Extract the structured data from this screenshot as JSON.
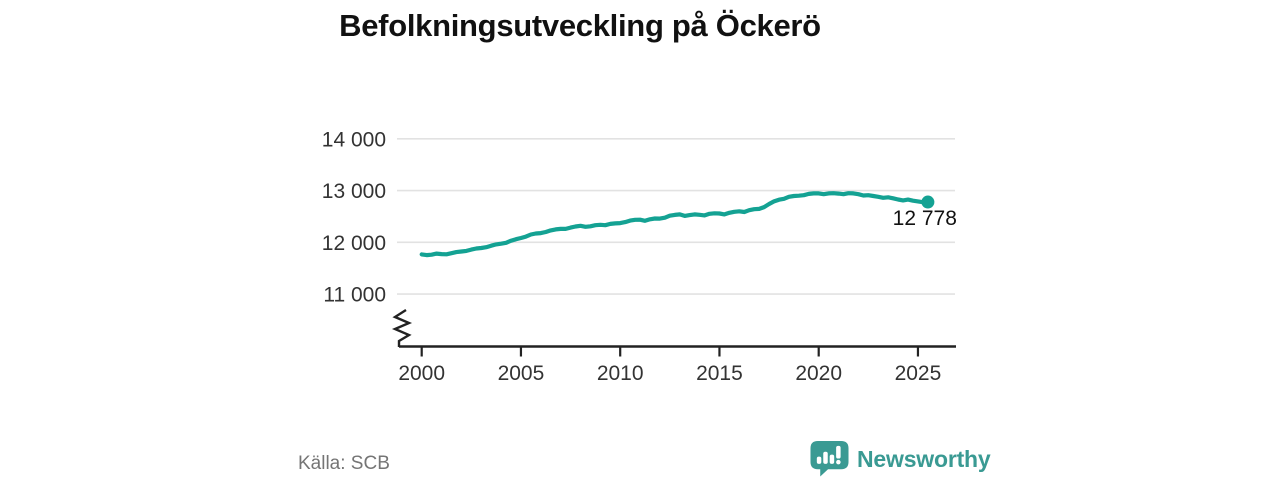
{
  "chart": {
    "title": "Befolkningsutveckling på Öckerö"
  },
  "footer": {
    "source": "Källa: SCB",
    "logo_text": "Newsworthy"
  },
  "colors": {
    "line": "#14a293",
    "grid": "#e2e2e2",
    "axis": "#222222",
    "tick_text": "#333333",
    "end_label_text": "#111111",
    "title_text": "#111111",
    "source_text": "#757575",
    "logo": "#3a9a93"
  },
  "chart_data": {
    "type": "line",
    "title": "Befolkningsutveckling på Öckerö",
    "xlabel": "",
    "ylabel": "",
    "source": "Källa: SCB",
    "grid": "horizontal",
    "axis_break_bottom": true,
    "xlim": [
      1998.8,
      2026.9
    ],
    "ylim_shown": [
      11000,
      14000
    ],
    "y_ticks": [
      {
        "value": 14000,
        "label": "14 000"
      },
      {
        "value": 13000,
        "label": "13 000"
      },
      {
        "value": 12000,
        "label": "12 000"
      },
      {
        "value": 11000,
        "label": "11 000"
      }
    ],
    "x_ticks": [
      {
        "value": 2000,
        "label": "2000"
      },
      {
        "value": 2005,
        "label": "2005"
      },
      {
        "value": 2010,
        "label": "2010"
      },
      {
        "value": 2015,
        "label": "2015"
      },
      {
        "value": 2020,
        "label": "2020"
      },
      {
        "value": 2025,
        "label": "2025"
      }
    ],
    "end_label": "12 778",
    "series": [
      {
        "name": "Befolkning",
        "points": [
          [
            2000.0,
            11767
          ],
          [
            2000.25,
            11752
          ],
          [
            2000.5,
            11760
          ],
          [
            2000.75,
            11782
          ],
          [
            2001.0,
            11771
          ],
          [
            2001.25,
            11768
          ],
          [
            2001.5,
            11790
          ],
          [
            2001.75,
            11810
          ],
          [
            2002.0,
            11822
          ],
          [
            2002.25,
            11833
          ],
          [
            2002.5,
            11858
          ],
          [
            2002.75,
            11880
          ],
          [
            2003.0,
            11890
          ],
          [
            2003.25,
            11905
          ],
          [
            2003.5,
            11935
          ],
          [
            2003.75,
            11960
          ],
          [
            2004.0,
            11972
          ],
          [
            2004.25,
            11990
          ],
          [
            2004.5,
            12030
          ],
          [
            2004.75,
            12060
          ],
          [
            2005.0,
            12084
          ],
          [
            2005.25,
            12110
          ],
          [
            2005.5,
            12150
          ],
          [
            2005.75,
            12170
          ],
          [
            2006.0,
            12178
          ],
          [
            2006.25,
            12200
          ],
          [
            2006.5,
            12230
          ],
          [
            2006.75,
            12250
          ],
          [
            2007.0,
            12259
          ],
          [
            2007.25,
            12260
          ],
          [
            2007.5,
            12285
          ],
          [
            2007.75,
            12305
          ],
          [
            2008.0,
            12319
          ],
          [
            2008.25,
            12300
          ],
          [
            2008.5,
            12310
          ],
          [
            2008.75,
            12330
          ],
          [
            2009.0,
            12339
          ],
          [
            2009.25,
            12330
          ],
          [
            2009.5,
            12355
          ],
          [
            2009.75,
            12365
          ],
          [
            2010.0,
            12372
          ],
          [
            2010.25,
            12390
          ],
          [
            2010.5,
            12420
          ],
          [
            2010.75,
            12435
          ],
          [
            2011.0,
            12437
          ],
          [
            2011.25,
            12415
          ],
          [
            2011.5,
            12445
          ],
          [
            2011.75,
            12460
          ],
          [
            2012.0,
            12459
          ],
          [
            2012.25,
            12475
          ],
          [
            2012.5,
            12515
          ],
          [
            2012.75,
            12530
          ],
          [
            2013.0,
            12539
          ],
          [
            2013.25,
            12510
          ],
          [
            2013.5,
            12525
          ],
          [
            2013.75,
            12540
          ],
          [
            2014.0,
            12532
          ],
          [
            2014.25,
            12520
          ],
          [
            2014.5,
            12550
          ],
          [
            2014.75,
            12560
          ],
          [
            2015.0,
            12557
          ],
          [
            2015.25,
            12540
          ],
          [
            2015.5,
            12570
          ],
          [
            2015.75,
            12590
          ],
          [
            2016.0,
            12599
          ],
          [
            2016.25,
            12585
          ],
          [
            2016.5,
            12620
          ],
          [
            2016.75,
            12640
          ],
          [
            2017.0,
            12645
          ],
          [
            2017.25,
            12680
          ],
          [
            2017.5,
            12740
          ],
          [
            2017.75,
            12790
          ],
          [
            2018.0,
            12823
          ],
          [
            2018.25,
            12840
          ],
          [
            2018.5,
            12880
          ],
          [
            2018.75,
            12895
          ],
          [
            2019.0,
            12900
          ],
          [
            2019.25,
            12910
          ],
          [
            2019.5,
            12935
          ],
          [
            2019.75,
            12945
          ],
          [
            2020.0,
            12945
          ],
          [
            2020.25,
            12930
          ],
          [
            2020.5,
            12945
          ],
          [
            2020.75,
            12950
          ],
          [
            2021.0,
            12941
          ],
          [
            2021.25,
            12930
          ],
          [
            2021.5,
            12950
          ],
          [
            2021.75,
            12945
          ],
          [
            2022.0,
            12929
          ],
          [
            2022.25,
            12905
          ],
          [
            2022.5,
            12910
          ],
          [
            2022.75,
            12895
          ],
          [
            2023.0,
            12880
          ],
          [
            2023.25,
            12860
          ],
          [
            2023.5,
            12870
          ],
          [
            2023.75,
            12850
          ],
          [
            2024.0,
            12827
          ],
          [
            2024.25,
            12810
          ],
          [
            2024.5,
            12825
          ],
          [
            2024.75,
            12805
          ],
          [
            2025.0,
            12790
          ],
          [
            2025.25,
            12775
          ],
          [
            2025.5,
            12778
          ]
        ]
      }
    ]
  }
}
